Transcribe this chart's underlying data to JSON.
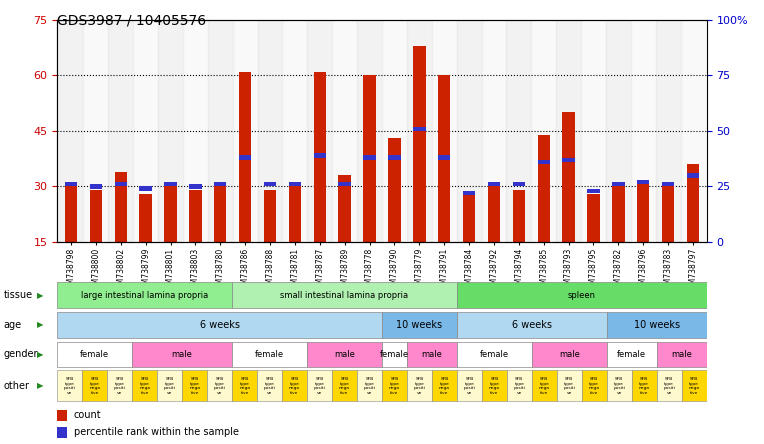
{
  "title": "GDS3987 / 10405576",
  "samples": [
    "GSM738798",
    "GSM738800",
    "GSM738802",
    "GSM738799",
    "GSM738801",
    "GSM738803",
    "GSM738780",
    "GSM738786",
    "GSM738788",
    "GSM738781",
    "GSM738787",
    "GSM738789",
    "GSM738778",
    "GSM738790",
    "GSM738779",
    "GSM738791",
    "GSM738784",
    "GSM738792",
    "GSM738794",
    "GSM738785",
    "GSM738793",
    "GSM738795",
    "GSM738782",
    "GSM738796",
    "GSM738783",
    "GSM738797"
  ],
  "red_values": [
    30,
    29,
    34,
    28,
    31,
    29,
    31,
    61,
    29,
    31,
    61,
    33,
    60,
    43,
    68,
    60,
    28,
    31,
    29,
    44,
    50,
    28,
    31,
    31,
    30,
    36
  ],
  "blue_values": [
    26,
    25,
    26,
    24,
    26,
    25,
    26,
    38,
    26,
    26,
    39,
    26,
    38,
    38,
    51,
    38,
    22,
    26,
    26,
    36,
    37,
    23,
    26,
    27,
    26,
    30
  ],
  "tissue_groups": [
    {
      "label": "large intestinal lamina propria",
      "start": 0,
      "end": 7,
      "color": "#90ee90"
    },
    {
      "label": "small intestinal lamina propria",
      "start": 7,
      "end": 16,
      "color": "#b0f0b0"
    },
    {
      "label": "spleen",
      "start": 16,
      "end": 26,
      "color": "#66dd66"
    }
  ],
  "age_groups": [
    {
      "label": "6 weeks",
      "start": 0,
      "end": 13,
      "color": "#b0d8f0"
    },
    {
      "label": "10 weeks",
      "start": 13,
      "end": 16,
      "color": "#7ab8e8"
    },
    {
      "label": "6 weeks",
      "start": 16,
      "end": 22,
      "color": "#b0d8f0"
    },
    {
      "label": "10 weeks",
      "start": 22,
      "end": 26,
      "color": "#7ab8e8"
    }
  ],
  "gender_groups": [
    {
      "label": "female",
      "start": 0,
      "end": 3,
      "color": "#ffffff"
    },
    {
      "label": "male",
      "start": 3,
      "end": 7,
      "color": "#ff88cc"
    },
    {
      "label": "female",
      "start": 7,
      "end": 10,
      "color": "#ffffff"
    },
    {
      "label": "male",
      "start": 10,
      "end": 13,
      "color": "#ff88cc"
    },
    {
      "label": "female",
      "start": 13,
      "end": 14,
      "color": "#ffffff"
    },
    {
      "label": "male",
      "start": 14,
      "end": 16,
      "color": "#ff88cc"
    },
    {
      "label": "female",
      "start": 16,
      "end": 19,
      "color": "#ffffff"
    },
    {
      "label": "male",
      "start": 19,
      "end": 22,
      "color": "#ff88cc"
    },
    {
      "label": "female",
      "start": 22,
      "end": 24,
      "color": "#ffffff"
    },
    {
      "label": "male",
      "start": 24,
      "end": 26,
      "color": "#ff88cc"
    }
  ],
  "other_groups_labels": [
    "SFB type positive",
    "SFB type negative"
  ],
  "ylim_left": [
    15,
    75
  ],
  "yticks_left": [
    15,
    30,
    45,
    60,
    75
  ],
  "ylim_right": [
    0,
    100
  ],
  "yticks_right": [
    0,
    25,
    50,
    75,
    100
  ],
  "bar_color_red": "#cc2200",
  "bar_color_blue": "#3333cc",
  "bar_width": 0.5,
  "left_ytick_color": "#cc0000",
  "right_ytick_color": "#0000cc",
  "grid_color": "#000000",
  "other_color_positive": "#fffacd",
  "other_color_negative": "#ffd700"
}
